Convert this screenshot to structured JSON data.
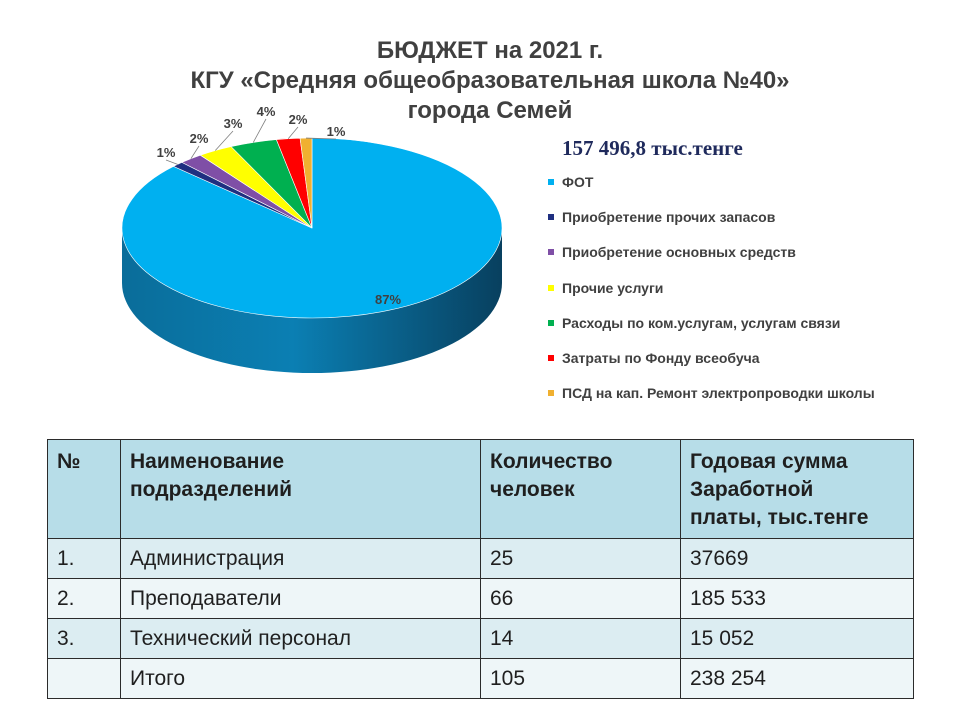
{
  "title_lines": [
    "БЮДЖЕТ на 2021 г.",
    "КГУ «Средняя общеобразовательная школа №40»",
    "города Семей"
  ],
  "total": "157 496,8 тыс.тенге",
  "chart_data": {
    "type": "pie",
    "title": "БЮДЖЕТ на 2021 г. КГУ «Средняя общеобразовательная школа №40» города Семей",
    "subtitle": "157 496,8 тыс.тенге",
    "legend_position": "right",
    "series": [
      {
        "label": "ФОТ",
        "value": 87,
        "display": "87%",
        "color": "#00b0f0"
      },
      {
        "label": "Приобретение прочих запасов",
        "value": 1,
        "display": "1%",
        "color": "#1f2f80"
      },
      {
        "label": "Приобретение основных средств",
        "value": 2,
        "display": "2%",
        "color": "#7f4fa6"
      },
      {
        "label": "Прочие услуги",
        "value": 3,
        "display": "3%",
        "color": "#ffff00"
      },
      {
        "label": "Расходы по ком.услугам, услугам связи",
        "value": 4,
        "display": "4%",
        "color": "#00b050"
      },
      {
        "label": "Затраты по Фонду всеобуча",
        "value": 2,
        "display": "2%",
        "color": "#ff0000"
      },
      {
        "label": "ПСД на кап. Ремонт электропроводки школы",
        "value": 1,
        "display": "1%",
        "color": "#f0b030"
      }
    ]
  },
  "table": {
    "headers": [
      [
        "№"
      ],
      [
        "Наименование",
        "подразделений"
      ],
      [
        "Количество",
        "человек"
      ],
      [
        "Годовая сумма",
        "Заработной",
        "платы, тыс.тенге"
      ]
    ],
    "rows": [
      [
        "1.",
        "Администрация",
        "25",
        "37669"
      ],
      [
        "2.",
        "Преподаватели",
        "66",
        "185 533"
      ],
      [
        "3.",
        "Технический персонал",
        "14",
        "15 052"
      ],
      [
        "",
        "Итого",
        "105",
        "238 254"
      ]
    ]
  }
}
